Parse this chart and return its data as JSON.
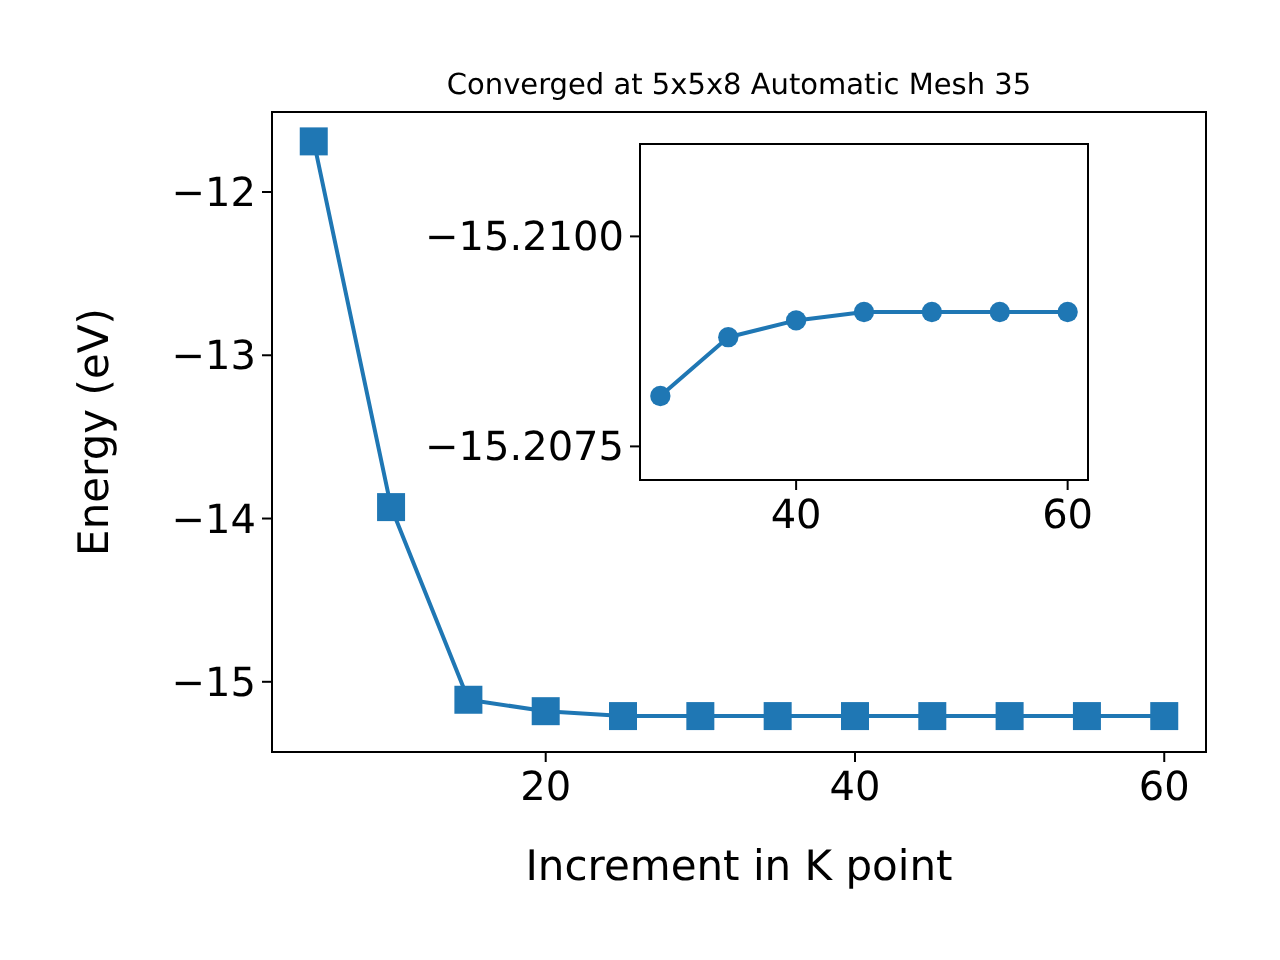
{
  "chart_data": [
    {
      "type": "line",
      "title": "Converged at 5x5x8 Automatic Mesh 35",
      "xlabel": "Increment in K point",
      "ylabel": "Energy (eV)",
      "x": [
        5,
        10,
        15,
        20,
        25,
        30,
        35,
        40,
        45,
        50,
        55,
        60
      ],
      "marker": "square",
      "line_style": "solid",
      "grid": false,
      "xlim": [
        2.3,
        62.7
      ],
      "ylim": [
        -15.43,
        -11.51
      ],
      "xticks": [
        20,
        40,
        60
      ],
      "yticks": [
        {
          "value": -12,
          "label": "−12"
        },
        {
          "value": -13,
          "label": "−13"
        },
        {
          "value": -14,
          "label": "−14"
        },
        {
          "value": -15,
          "label": "−15"
        }
      ],
      "series": [
        {
          "color": "#1f77b4",
          "values": [
            -11.69,
            -13.93,
            -15.11,
            -15.18,
            -15.21,
            -15.21,
            -15.21,
            -15.21,
            -15.21,
            -15.21,
            -15.21,
            -15.21
          ]
        }
      ]
    },
    {
      "type": "line",
      "x": [
        30,
        35,
        40,
        45,
        50,
        55,
        60
      ],
      "marker": "circle",
      "line_style": "solid",
      "grid": false,
      "xlim": [
        28.5,
        61.5
      ],
      "ylim": [
        -15.2071,
        -15.2111
      ],
      "xticks": [
        40,
        60
      ],
      "yticks": [
        {
          "value": -15.21,
          "label": "−15.2100"
        },
        {
          "value": -15.2075,
          "label": "−15.2075"
        }
      ],
      "series": [
        {
          "color": "#1f77b4",
          "values": [
            -15.2081,
            -15.2088,
            -15.209,
            -15.2091,
            -15.2091,
            -15.2091,
            -15.2091
          ]
        }
      ]
    }
  ]
}
